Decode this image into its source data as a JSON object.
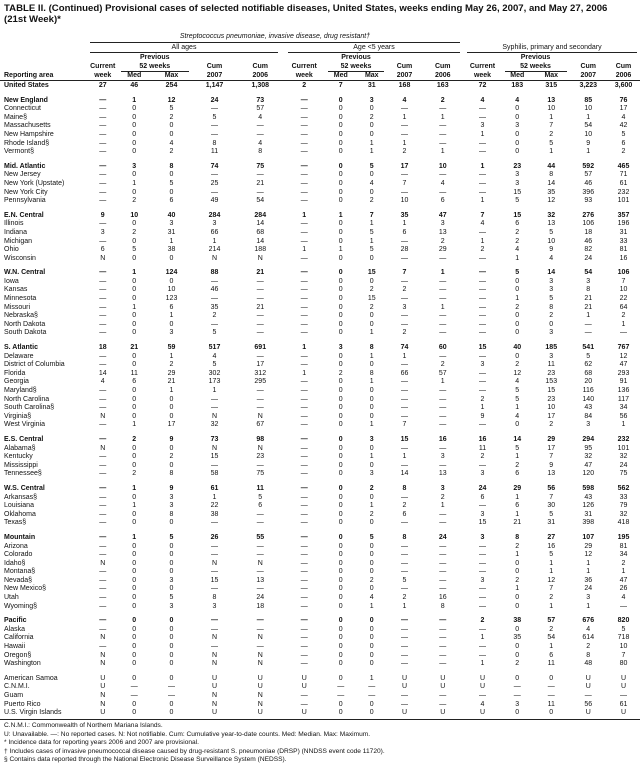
{
  "title": {
    "main": "TABLE II. (Continued) Provisional cases of selected notifiable diseases, United States, weeks ending May 26, 2007, and May 27, 2006",
    "week": "(21st Week)*"
  },
  "header": {
    "disease_group": "Streptococcus pneumoniae, invasive disease, drug resistant†",
    "subgroups": [
      "All ages",
      "Age <5 years",
      "Syphilis, primary and secondary"
    ],
    "previous": "Previous",
    "weeks52": "52 weeks",
    "current": "Current",
    "week": "week",
    "med": "Med",
    "max": "Max",
    "cum": "Cum",
    "y2007": "2007",
    "y2006": "2006",
    "reporting_area": "Reporting area"
  },
  "groups": [
    {
      "rows": [
        [
          "United States",
          "27",
          "46",
          "254",
          "1,147",
          "1,308",
          "2",
          "7",
          "31",
          "168",
          "163",
          "72",
          "183",
          "315",
          "3,223",
          "3,600"
        ]
      ]
    },
    {
      "rows": [
        [
          "New England",
          "—",
          "1",
          "12",
          "24",
          "73",
          "—",
          "0",
          "3",
          "4",
          "2",
          "4",
          "4",
          "13",
          "85",
          "76"
        ],
        [
          "Connecticut",
          "—",
          "0",
          "5",
          "—",
          "57",
          "—",
          "0",
          "0",
          "—",
          "—",
          "—",
          "0",
          "10",
          "10",
          "17"
        ],
        [
          "Maine§",
          "—",
          "0",
          "2",
          "5",
          "4",
          "—",
          "0",
          "2",
          "1",
          "1",
          "—",
          "0",
          "1",
          "1",
          "4"
        ],
        [
          "Massachusetts",
          "—",
          "0",
          "0",
          "—",
          "—",
          "—",
          "0",
          "0",
          "—",
          "—",
          "3",
          "3",
          "7",
          "54",
          "42"
        ],
        [
          "New Hampshire",
          "—",
          "0",
          "0",
          "—",
          "—",
          "—",
          "0",
          "0",
          "—",
          "—",
          "1",
          "0",
          "2",
          "10",
          "5"
        ],
        [
          "Rhode Island§",
          "—",
          "0",
          "4",
          "8",
          "4",
          "—",
          "0",
          "1",
          "1",
          "—",
          "—",
          "0",
          "5",
          "9",
          "6"
        ],
        [
          "Vermont§",
          "—",
          "0",
          "2",
          "11",
          "8",
          "—",
          "0",
          "1",
          "2",
          "1",
          "—",
          "0",
          "1",
          "1",
          "2"
        ]
      ]
    },
    {
      "rows": [
        [
          "Mid. Atlantic",
          "—",
          "3",
          "8",
          "74",
          "75",
          "—",
          "0",
          "5",
          "17",
          "10",
          "1",
          "23",
          "44",
          "592",
          "465"
        ],
        [
          "New Jersey",
          "—",
          "0",
          "0",
          "—",
          "—",
          "—",
          "0",
          "0",
          "—",
          "—",
          "—",
          "3",
          "8",
          "57",
          "71"
        ],
        [
          "New York (Upstate)",
          "—",
          "1",
          "5",
          "25",
          "21",
          "—",
          "0",
          "4",
          "7",
          "4",
          "—",
          "3",
          "14",
          "46",
          "61"
        ],
        [
          "New York City",
          "—",
          "0",
          "0",
          "—",
          "—",
          "—",
          "0",
          "0",
          "—",
          "—",
          "—",
          "15",
          "35",
          "396",
          "232"
        ],
        [
          "Pennsylvania",
          "—",
          "2",
          "6",
          "49",
          "54",
          "—",
          "0",
          "2",
          "10",
          "6",
          "1",
          "5",
          "12",
          "93",
          "101"
        ]
      ]
    },
    {
      "rows": [
        [
          "E.N. Central",
          "9",
          "10",
          "40",
          "284",
          "284",
          "1",
          "1",
          "7",
          "35",
          "47",
          "7",
          "15",
          "32",
          "276",
          "357"
        ],
        [
          "Illinois",
          "—",
          "0",
          "3",
          "3",
          "14",
          "—",
          "0",
          "1",
          "1",
          "3",
          "4",
          "6",
          "13",
          "106",
          "196"
        ],
        [
          "Indiana",
          "3",
          "2",
          "31",
          "66",
          "68",
          "—",
          "0",
          "5",
          "6",
          "13",
          "—",
          "2",
          "5",
          "18",
          "31"
        ],
        [
          "Michigan",
          "—",
          "0",
          "1",
          "1",
          "14",
          "—",
          "0",
          "1",
          "—",
          "2",
          "1",
          "2",
          "10",
          "46",
          "33"
        ],
        [
          "Ohio",
          "6",
          "5",
          "38",
          "214",
          "188",
          "1",
          "1",
          "5",
          "28",
          "29",
          "2",
          "4",
          "9",
          "82",
          "81"
        ],
        [
          "Wisconsin",
          "N",
          "0",
          "0",
          "N",
          "N",
          "—",
          "0",
          "0",
          "—",
          "—",
          "—",
          "1",
          "4",
          "24",
          "16"
        ]
      ]
    },
    {
      "rows": [
        [
          "W.N. Central",
          "—",
          "1",
          "124",
          "88",
          "21",
          "—",
          "0",
          "15",
          "7",
          "1",
          "—",
          "5",
          "14",
          "54",
          "106"
        ],
        [
          "Iowa",
          "—",
          "0",
          "0",
          "—",
          "—",
          "—",
          "0",
          "0",
          "—",
          "—",
          "—",
          "0",
          "3",
          "3",
          "7"
        ],
        [
          "Kansas",
          "—",
          "0",
          "10",
          "46",
          "—",
          "—",
          "0",
          "2",
          "2",
          "—",
          "—",
          "0",
          "3",
          "8",
          "10"
        ],
        [
          "Minnesota",
          "—",
          "0",
          "123",
          "—",
          "—",
          "—",
          "0",
          "15",
          "—",
          "—",
          "—",
          "1",
          "5",
          "21",
          "22"
        ],
        [
          "Missouri",
          "—",
          "1",
          "6",
          "35",
          "21",
          "—",
          "0",
          "2",
          "3",
          "1",
          "—",
          "2",
          "8",
          "21",
          "64"
        ],
        [
          "Nebraska§",
          "—",
          "0",
          "1",
          "2",
          "—",
          "—",
          "0",
          "0",
          "—",
          "—",
          "—",
          "0",
          "2",
          "1",
          "2"
        ],
        [
          "North Dakota",
          "—",
          "0",
          "0",
          "—",
          "—",
          "—",
          "0",
          "0",
          "—",
          "—",
          "—",
          "0",
          "0",
          "—",
          "1"
        ],
        [
          "South Dakota",
          "—",
          "0",
          "3",
          "5",
          "—",
          "—",
          "0",
          "1",
          "2",
          "—",
          "—",
          "0",
          "3",
          "—",
          "—"
        ]
      ]
    },
    {
      "rows": [
        [
          "S. Atlantic",
          "18",
          "21",
          "59",
          "517",
          "691",
          "1",
          "3",
          "8",
          "74",
          "60",
          "15",
          "40",
          "185",
          "541",
          "767"
        ],
        [
          "Delaware",
          "—",
          "0",
          "1",
          "4",
          "—",
          "—",
          "0",
          "1",
          "1",
          "—",
          "—",
          "0",
          "3",
          "5",
          "12"
        ],
        [
          "District of Columbia",
          "—",
          "0",
          "2",
          "5",
          "17",
          "—",
          "0",
          "0",
          "—",
          "2",
          "3",
          "2",
          "11",
          "62",
          "47"
        ],
        [
          "Florida",
          "14",
          "11",
          "29",
          "302",
          "312",
          "1",
          "2",
          "8",
          "66",
          "57",
          "—",
          "12",
          "23",
          "68",
          "293"
        ],
        [
          "Georgia",
          "4",
          "6",
          "21",
          "173",
          "295",
          "—",
          "0",
          "1",
          "—",
          "1",
          "—",
          "4",
          "153",
          "20",
          "91"
        ],
        [
          "Maryland§",
          "—",
          "0",
          "1",
          "1",
          "—",
          "—",
          "0",
          "0",
          "—",
          "—",
          "—",
          "5",
          "15",
          "116",
          "136"
        ],
        [
          "North Carolina",
          "—",
          "0",
          "0",
          "—",
          "—",
          "—",
          "0",
          "0",
          "—",
          "—",
          "2",
          "5",
          "23",
          "140",
          "117"
        ],
        [
          "South Carolina§",
          "—",
          "0",
          "0",
          "—",
          "—",
          "—",
          "0",
          "0",
          "—",
          "—",
          "1",
          "1",
          "10",
          "43",
          "34"
        ],
        [
          "Virginia§",
          "N",
          "0",
          "0",
          "N",
          "N",
          "—",
          "0",
          "0",
          "—",
          "—",
          "9",
          "4",
          "17",
          "84",
          "56"
        ],
        [
          "West Virginia",
          "—",
          "1",
          "17",
          "32",
          "67",
          "—",
          "0",
          "1",
          "7",
          "—",
          "—",
          "0",
          "2",
          "3",
          "1"
        ]
      ]
    },
    {
      "rows": [
        [
          "E.S. Central",
          "—",
          "2",
          "9",
          "73",
          "98",
          "—",
          "0",
          "3",
          "15",
          "16",
          "16",
          "14",
          "29",
          "294",
          "232"
        ],
        [
          "Alabama§",
          "N",
          "0",
          "0",
          "N",
          "N",
          "—",
          "0",
          "0",
          "—",
          "—",
          "11",
          "5",
          "17",
          "95",
          "101"
        ],
        [
          "Kentucky",
          "—",
          "0",
          "2",
          "15",
          "23",
          "—",
          "0",
          "1",
          "1",
          "3",
          "2",
          "1",
          "7",
          "32",
          "32"
        ],
        [
          "Mississippi",
          "—",
          "0",
          "0",
          "—",
          "—",
          "—",
          "0",
          "0",
          "—",
          "—",
          "—",
          "2",
          "9",
          "47",
          "24"
        ],
        [
          "Tennessee§",
          "—",
          "2",
          "8",
          "58",
          "75",
          "—",
          "0",
          "3",
          "14",
          "13",
          "3",
          "6",
          "13",
          "120",
          "75"
        ]
      ]
    },
    {
      "rows": [
        [
          "W.S. Central",
          "—",
          "1",
          "9",
          "61",
          "11",
          "—",
          "0",
          "2",
          "8",
          "3",
          "24",
          "29",
          "56",
          "598",
          "562"
        ],
        [
          "Arkansas§",
          "—",
          "0",
          "3",
          "1",
          "5",
          "—",
          "0",
          "0",
          "—",
          "2",
          "6",
          "1",
          "7",
          "43",
          "33"
        ],
        [
          "Louisiana",
          "—",
          "1",
          "3",
          "22",
          "6",
          "—",
          "0",
          "1",
          "2",
          "1",
          "—",
          "6",
          "30",
          "126",
          "79"
        ],
        [
          "Oklahoma",
          "—",
          "0",
          "8",
          "38",
          "—",
          "—",
          "0",
          "2",
          "6",
          "—",
          "3",
          "1",
          "5",
          "31",
          "32"
        ],
        [
          "Texas§",
          "—",
          "0",
          "0",
          "—",
          "—",
          "—",
          "0",
          "0",
          "—",
          "—",
          "15",
          "21",
          "31",
          "398",
          "418"
        ]
      ]
    },
    {
      "rows": [
        [
          "Mountain",
          "—",
          "1",
          "5",
          "26",
          "55",
          "—",
          "0",
          "5",
          "8",
          "24",
          "3",
          "8",
          "27",
          "107",
          "195"
        ],
        [
          "Arizona",
          "—",
          "0",
          "0",
          "—",
          "—",
          "—",
          "0",
          "0",
          "—",
          "—",
          "—",
          "2",
          "16",
          "29",
          "81"
        ],
        [
          "Colorado",
          "—",
          "0",
          "0",
          "—",
          "—",
          "—",
          "0",
          "0",
          "—",
          "—",
          "—",
          "1",
          "5",
          "12",
          "34"
        ],
        [
          "Idaho§",
          "N",
          "0",
          "0",
          "N",
          "N",
          "—",
          "0",
          "0",
          "—",
          "—",
          "—",
          "0",
          "1",
          "1",
          "2"
        ],
        [
          "Montana§",
          "—",
          "0",
          "0",
          "—",
          "—",
          "—",
          "0",
          "0",
          "—",
          "—",
          "—",
          "0",
          "1",
          "1",
          "1"
        ],
        [
          "Nevada§",
          "—",
          "0",
          "3",
          "15",
          "13",
          "—",
          "0",
          "2",
          "5",
          "—",
          "3",
          "2",
          "12",
          "36",
          "47"
        ],
        [
          "New Mexico§",
          "—",
          "0",
          "0",
          "—",
          "—",
          "—",
          "0",
          "0",
          "—",
          "—",
          "—",
          "1",
          "7",
          "24",
          "26"
        ],
        [
          "Utah",
          "—",
          "0",
          "5",
          "8",
          "24",
          "—",
          "0",
          "4",
          "2",
          "16",
          "—",
          "0",
          "2",
          "3",
          "4"
        ],
        [
          "Wyoming§",
          "—",
          "0",
          "3",
          "3",
          "18",
          "—",
          "0",
          "1",
          "1",
          "8",
          "—",
          "0",
          "1",
          "1",
          "—"
        ]
      ]
    },
    {
      "rows": [
        [
          "Pacific",
          "—",
          "0",
          "0",
          "—",
          "—",
          "—",
          "0",
          "0",
          "—",
          "—",
          "2",
          "38",
          "57",
          "676",
          "820"
        ],
        [
          "Alaska",
          "—",
          "0",
          "0",
          "—",
          "—",
          "—",
          "0",
          "0",
          "—",
          "—",
          "—",
          "0",
          "2",
          "4",
          "5"
        ],
        [
          "California",
          "N",
          "0",
          "0",
          "N",
          "N",
          "—",
          "0",
          "0",
          "—",
          "—",
          "1",
          "35",
          "54",
          "614",
          "718"
        ],
        [
          "Hawaii",
          "—",
          "0",
          "0",
          "—",
          "—",
          "—",
          "0",
          "0",
          "—",
          "—",
          "—",
          "0",
          "1",
          "2",
          "10"
        ],
        [
          "Oregon§",
          "N",
          "0",
          "0",
          "N",
          "N",
          "—",
          "0",
          "0",
          "—",
          "—",
          "—",
          "0",
          "6",
          "8",
          "7"
        ],
        [
          "Washington",
          "N",
          "0",
          "0",
          "N",
          "N",
          "—",
          "0",
          "0",
          "—",
          "—",
          "1",
          "2",
          "11",
          "48",
          "80"
        ]
      ]
    },
    {
      "rows": [
        [
          "American Samoa",
          "U",
          "0",
          "0",
          "U",
          "U",
          "U",
          "0",
          "1",
          "U",
          "U",
          "U",
          "0",
          "0",
          "U",
          "U"
        ],
        [
          "C.N.M.I.",
          "U",
          "—",
          "—",
          "U",
          "U",
          "U",
          "—",
          "—",
          "U",
          "U",
          "U",
          "—",
          "—",
          "U",
          "U"
        ],
        [
          "Guam",
          "N",
          "—",
          "—",
          "N",
          "N",
          "—",
          "—",
          "—",
          "—",
          "—",
          "—",
          "—",
          "—",
          "—",
          "—"
        ],
        [
          "Puerto Rico",
          "N",
          "0",
          "0",
          "N",
          "N",
          "—",
          "0",
          "0",
          "—",
          "—",
          "4",
          "3",
          "11",
          "56",
          "61"
        ],
        [
          "U.S. Virgin Islands",
          "U",
          "0",
          "0",
          "U",
          "U",
          "U",
          "0",
          "0",
          "U",
          "U",
          "U",
          "0",
          "0",
          "U",
          "U"
        ]
      ]
    }
  ],
  "footnotes": [
    "C.N.M.I.: Commonwealth of Northern Mariana Islands.",
    "U: Unavailable.   —: No reported cases.   N: Not notifiable.   Cum: Cumulative year-to-date counts.   Med: Median.   Max: Maximum.",
    "* Incidence data for reporting years 2006 and 2007 are provisional.",
    "† Includes cases of invasive pneumococcal disease caused by drug-resistant S. pneumoniae (DRSP) (NNDSS event code 11720).",
    "§ Contains data reported through the National Electronic Disease Surveillance System (NEDSS)."
  ]
}
